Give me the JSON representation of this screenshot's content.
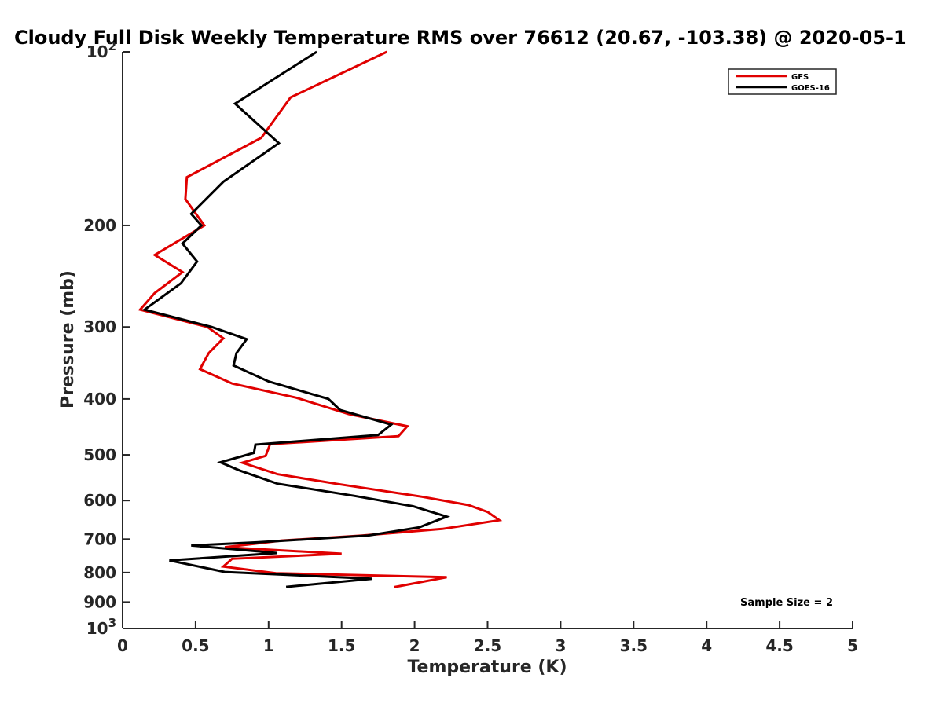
{
  "chart_data": {
    "type": "line",
    "title": "Cloudy Full Disk Weekly Temperature RMS over 76612 (20.67, -103.38) @ 2020-05-1",
    "xlabel": "Temperature (K)",
    "ylabel": "Pressure (mb)",
    "xlim": [
      0,
      5
    ],
    "ylim": [
      100,
      1000
    ],
    "y_scale": "log",
    "y_reversed": true,
    "grid": false,
    "x_ticks": [
      {
        "value": 0,
        "label": "0"
      },
      {
        "value": 0.5,
        "label": "0.5"
      },
      {
        "value": 1,
        "label": "1"
      },
      {
        "value": 1.5,
        "label": "1.5"
      },
      {
        "value": 2,
        "label": "2"
      },
      {
        "value": 2.5,
        "label": "2.5"
      },
      {
        "value": 3,
        "label": "3"
      },
      {
        "value": 3.5,
        "label": "3.5"
      },
      {
        "value": 4,
        "label": "4"
      },
      {
        "value": 4.5,
        "label": "4.5"
      },
      {
        "value": 5,
        "label": "5"
      }
    ],
    "y_ticks": [
      {
        "value": 100,
        "base": "10",
        "exp": "2"
      },
      {
        "value": 200,
        "label": "200"
      },
      {
        "value": 300,
        "label": "300"
      },
      {
        "value": 400,
        "label": "400"
      },
      {
        "value": 500,
        "label": "500"
      },
      {
        "value": 600,
        "label": "600"
      },
      {
        "value": 700,
        "label": "700"
      },
      {
        "value": 800,
        "label": "800"
      },
      {
        "value": 900,
        "label": "900"
      },
      {
        "value": 1000,
        "base": "10",
        "exp": "3"
      }
    ],
    "legend": {
      "placement": "top-right"
    },
    "annotation": "Sample Size = 2",
    "series": [
      {
        "name": "GFS",
        "color": "#e00000",
        "points": [
          [
            1.81,
            100
          ],
          [
            1.15,
            120
          ],
          [
            0.95,
            141
          ],
          [
            0.44,
            165
          ],
          [
            0.43,
            180
          ],
          [
            0.56,
            200
          ],
          [
            0.22,
            225
          ],
          [
            0.41,
            241
          ],
          [
            0.22,
            262
          ],
          [
            0.12,
            280
          ],
          [
            0.58,
            300
          ],
          [
            0.69,
            314
          ],
          [
            0.59,
            333
          ],
          [
            0.53,
            355
          ],
          [
            0.75,
            376
          ],
          [
            1.19,
            398
          ],
          [
            1.55,
            425
          ],
          [
            1.95,
            446
          ],
          [
            1.89,
            464
          ],
          [
            1.01,
            479
          ],
          [
            0.98,
            502
          ],
          [
            0.82,
            516
          ],
          [
            1.06,
            540
          ],
          [
            1.48,
            562
          ],
          [
            2.05,
            591
          ],
          [
            2.37,
            611
          ],
          [
            2.5,
            628
          ],
          [
            2.58,
            649
          ],
          [
            2.19,
            672
          ],
          [
            1.64,
            690
          ],
          [
            1.09,
            704
          ],
          [
            0.7,
            723
          ],
          [
            1.5,
            742
          ],
          [
            0.75,
            757
          ],
          [
            0.69,
            781
          ],
          [
            1.05,
            802
          ],
          [
            2.22,
            815
          ],
          [
            1.86,
            848
          ]
        ]
      },
      {
        "name": "GOES-16",
        "color": "#000000",
        "points": [
          [
            1.33,
            100
          ],
          [
            0.77,
            123
          ],
          [
            1.07,
            144
          ],
          [
            0.69,
            168
          ],
          [
            0.47,
            191
          ],
          [
            0.54,
            200
          ],
          [
            0.41,
            215
          ],
          [
            0.51,
            231
          ],
          [
            0.4,
            252
          ],
          [
            0.15,
            280
          ],
          [
            0.61,
            300
          ],
          [
            0.85,
            315
          ],
          [
            0.78,
            333
          ],
          [
            0.76,
            350
          ],
          [
            1.0,
            373
          ],
          [
            1.41,
            400
          ],
          [
            1.49,
            418
          ],
          [
            1.84,
            443
          ],
          [
            1.75,
            462
          ],
          [
            0.91,
            480
          ],
          [
            0.9,
            496
          ],
          [
            0.67,
            515
          ],
          [
            0.8,
            532
          ],
          [
            1.06,
            561
          ],
          [
            1.59,
            589
          ],
          [
            1.99,
            614
          ],
          [
            2.22,
            640
          ],
          [
            2.03,
            668
          ],
          [
            1.68,
            690
          ],
          [
            0.92,
            709
          ],
          [
            0.47,
            718
          ],
          [
            1.06,
            740
          ],
          [
            0.32,
            762
          ],
          [
            0.7,
            798
          ],
          [
            1.71,
            820
          ],
          [
            1.12,
            847
          ]
        ]
      }
    ]
  }
}
